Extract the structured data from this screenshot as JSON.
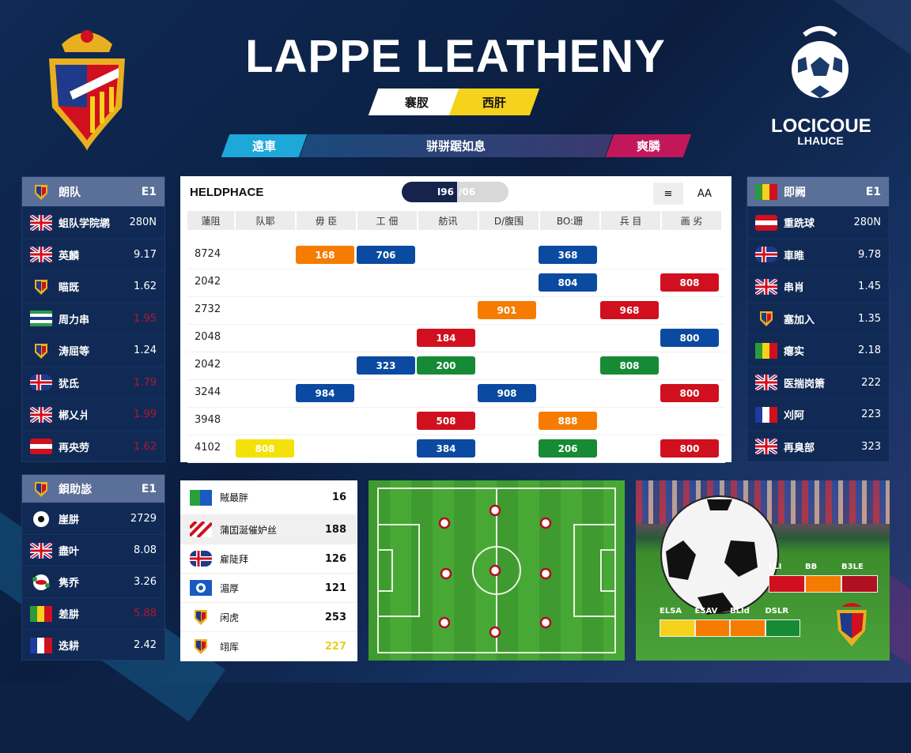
{
  "header": {
    "title": "LAPPE LEATHENY",
    "tabs": [
      "褰肞",
      "西肝"
    ],
    "bar": {
      "left": "遠車",
      "center": "骈骈踞如息",
      "right": "爽膦"
    },
    "right_logo": {
      "text1": "LOCICOUE",
      "text2": "LHAUCE"
    }
  },
  "colors": {
    "accent_cyan": "#1ea7d9",
    "accent_magenta": "#c2185b",
    "accent_yellow": "#f5d21c",
    "navy": "#0d2145",
    "blue": "#0a4aa0",
    "orange": "#f57c00",
    "red": "#d0101e",
    "green": "#178a35",
    "gold": "#f5e10a"
  },
  "left_panel": {
    "header": {
      "label": "朗队",
      "value": "E1",
      "flag": "crest-heart"
    },
    "rows": [
      {
        "flag": "uk",
        "label": "蛆队学院鹕",
        "value": "280N",
        "alert": false
      },
      {
        "flag": "uk-round",
        "label": "英麟",
        "value": "9.17",
        "alert": false
      },
      {
        "flag": "crest",
        "label": "瞄既",
        "value": "1.62",
        "alert": false
      },
      {
        "flag": "green-stripes",
        "label": "周力串",
        "value": "1.95",
        "alert": true
      },
      {
        "flag": "crest",
        "label": "涛屈等",
        "value": "1.24",
        "alert": false
      },
      {
        "flag": "cross",
        "label": "犹氐",
        "value": "1.79",
        "alert": true
      },
      {
        "flag": "uk",
        "label": "郴乂爿",
        "value": "1.99",
        "alert": true
      },
      {
        "flag": "red-white",
        "label": "再央劳",
        "value": "1.62",
        "alert": true
      }
    ]
  },
  "right_panel": {
    "header": {
      "label": "即阙",
      "value": "E1",
      "flag": "gyr"
    },
    "rows": [
      {
        "flag": "red-white",
        "label": "重跣球",
        "value": "280N"
      },
      {
        "flag": "cross",
        "label": "車睢",
        "value": "9.78"
      },
      {
        "flag": "uk",
        "label": "串肖",
        "value": "1.45"
      },
      {
        "flag": "crest",
        "label": "塞加入",
        "value": "1.35"
      },
      {
        "flag": "gyr",
        "label": "瘪实",
        "value": "2.18"
      },
      {
        "flag": "uk",
        "label": "医揣岗箫",
        "value": "222"
      },
      {
        "flag": "france",
        "label": "刈阿",
        "value": "223"
      },
      {
        "flag": "uk",
        "label": "再臭部",
        "value": "323"
      }
    ]
  },
  "schedule": {
    "title": "HELDPHACE",
    "toggle": {
      "on": "I96",
      "off": "/06"
    },
    "buttons": [
      "≡",
      "AA"
    ],
    "columns": [
      "蓮阻",
      "队耶",
      "毋 臣",
      "工 佃",
      "舫讯",
      "D/腹围",
      "BO:跚",
      "兵 目",
      "画 劣"
    ],
    "rows": [
      {
        "label": "8724",
        "cells": [
          {
            "col": 1,
            "value": "168",
            "color": "orange"
          },
          {
            "col": 2,
            "value": "706",
            "color": "blue"
          },
          {
            "col": 5,
            "value": "368",
            "color": "blue"
          }
        ]
      },
      {
        "label": "2042",
        "cells": [
          {
            "col": 5,
            "value": "804",
            "color": "blue"
          },
          {
            "col": 7,
            "value": "808",
            "color": "red"
          }
        ]
      },
      {
        "label": "2732",
        "cells": [
          {
            "col": 4,
            "value": "901",
            "color": "orange"
          },
          {
            "col": 6,
            "value": "968",
            "color": "red"
          }
        ]
      },
      {
        "label": "2048",
        "cells": [
          {
            "col": 3,
            "value": "184",
            "color": "red"
          },
          {
            "col": 7,
            "value": "800",
            "color": "blue"
          }
        ]
      },
      {
        "label": "2042",
        "cells": [
          {
            "col": 2,
            "value": "323",
            "color": "blue"
          },
          {
            "col": 3,
            "value": "200",
            "color": "green"
          },
          {
            "col": 6,
            "value": "808",
            "color": "green"
          }
        ]
      },
      {
        "label": "3244",
        "cells": [
          {
            "col": 1,
            "value": "984",
            "color": "blue"
          },
          {
            "col": 4,
            "value": "908",
            "color": "blue"
          },
          {
            "col": 7,
            "value": "800",
            "color": "red"
          }
        ]
      },
      {
        "label": "3948",
        "cells": [
          {
            "col": 3,
            "value": "508",
            "color": "red"
          },
          {
            "col": 5,
            "value": "888",
            "color": "orange"
          }
        ]
      },
      {
        "label": "4102",
        "cells": [
          {
            "col": 0,
            "value": "808",
            "color": "gold"
          },
          {
            "col": 3,
            "value": "384",
            "color": "blue"
          },
          {
            "col": 5,
            "value": "206",
            "color": "green"
          },
          {
            "col": 7,
            "value": "800",
            "color": "red"
          }
        ]
      }
    ]
  },
  "bottom_left_panel": {
    "header": {
      "label": "鋇助毖",
      "value": "E1",
      "flag": "crest"
    },
    "rows": [
      {
        "flag": "ball",
        "label": "崖肼",
        "value": "2729",
        "alert": false
      },
      {
        "flag": "uk",
        "label": "盡叶",
        "value": "8.08",
        "alert": false
      },
      {
        "flag": "ball-green",
        "label": "隽乔",
        "value": "3.26",
        "alert": false
      },
      {
        "flag": "gyr",
        "label": "差肼",
        "value": "5.88",
        "alert": true
      },
      {
        "flag": "france",
        "label": "迭耕",
        "value": "2.42",
        "alert": false
      }
    ]
  },
  "bottom_list": {
    "rows": [
      {
        "flag": "green-blue",
        "label": "賊最胖",
        "value": "16",
        "highlight": false,
        "gold": false
      },
      {
        "flag": "red-diag",
        "label": "蒲囯涎催妒丝",
        "value": "188",
        "highlight": true,
        "gold": false
      },
      {
        "flag": "cross",
        "label": "雇陡拜",
        "value": "126",
        "highlight": false,
        "gold": false
      },
      {
        "flag": "blue-ring",
        "label": "湄厚",
        "value": "121",
        "highlight": false,
        "gold": false
      },
      {
        "flag": "crest",
        "label": "闲虎",
        "value": "253",
        "highlight": false,
        "gold": false
      },
      {
        "flag": "crest",
        "label": "翊厍",
        "value": "227",
        "highlight": false,
        "gold": true
      }
    ]
  },
  "photo_bars": {
    "top": {
      "labels": [
        "LLI",
        "BB",
        "B3LE"
      ],
      "colors": [
        "red",
        "orange",
        "darkred"
      ]
    },
    "bottom": {
      "labels": [
        "ELSA",
        "ESAV",
        "BLId",
        "DSLR"
      ],
      "colors": [
        "yellow",
        "orange",
        "orange",
        "green"
      ]
    }
  }
}
